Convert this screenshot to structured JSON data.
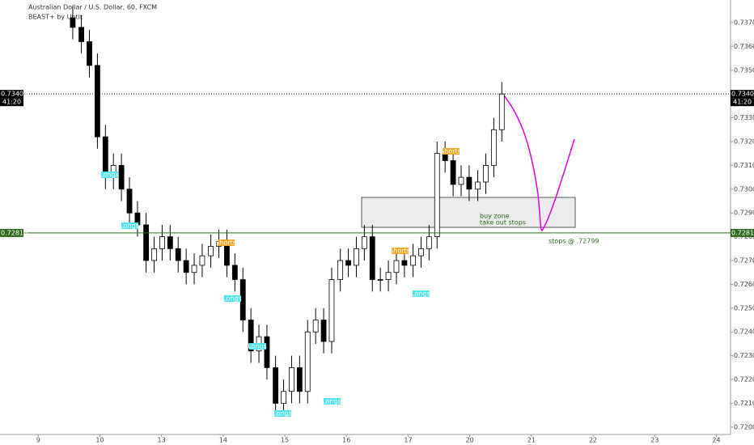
{
  "chart_data": {
    "type": "candlestick",
    "title": "Australian Dollar / U.S. Dollar, 60, FXCM",
    "subtitle": "BEAST+ by Untit",
    "up_color": "#ffffff",
    "down_color": "#000000",
    "xlim": [
      -0.62,
      11.23
    ],
    "ylim": [
      0.71969,
      0.73795
    ],
    "xticks": [
      {
        "value": 0,
        "label": "9"
      },
      {
        "value": 1,
        "label": "10"
      },
      {
        "value": 2,
        "label": "13"
      },
      {
        "value": 3,
        "label": "14"
      },
      {
        "value": 4,
        "label": "15"
      },
      {
        "value": 5,
        "label": "16"
      },
      {
        "value": 6,
        "label": "17"
      },
      {
        "value": 7,
        "label": "20"
      },
      {
        "value": 8,
        "label": "21"
      },
      {
        "value": 9,
        "label": "22"
      },
      {
        "value": 10,
        "label": "23"
      },
      {
        "value": 11,
        "label": "24"
      }
    ],
    "yticks": [
      {
        "value": 0.72,
        "label": "0.72000"
      },
      {
        "value": 0.721,
        "label": "0.72100"
      },
      {
        "value": 0.722,
        "label": "0.72200"
      },
      {
        "value": 0.723,
        "label": "0.72300"
      },
      {
        "value": 0.724,
        "label": "0.72400"
      },
      {
        "value": 0.725,
        "label": "0.72500"
      },
      {
        "value": 0.726,
        "label": "0.72600"
      },
      {
        "value": 0.727,
        "label": "0.72700"
      },
      {
        "value": 0.728,
        "label": "0.72800"
      },
      {
        "value": 0.729,
        "label": "0.72900"
      },
      {
        "value": 0.73,
        "label": "0.73000"
      },
      {
        "value": 0.731,
        "label": "0.73100"
      },
      {
        "value": 0.732,
        "label": "0.73200"
      },
      {
        "value": 0.733,
        "label": "0.73300"
      },
      {
        "value": 0.734,
        "label": "0.73400"
      },
      {
        "value": 0.735,
        "label": "0.73500"
      },
      {
        "value": 0.736,
        "label": "0.73600"
      },
      {
        "value": 0.737,
        "label": "0.73700"
      }
    ],
    "x": [
      0.56,
      0.7,
      0.83,
      0.96,
      1.09,
      1.22,
      1.35,
      1.48,
      1.61,
      1.75,
      1.88,
      2.01,
      2.14,
      2.27,
      2.4,
      2.53,
      2.66,
      2.8,
      2.93,
      3.06,
      3.19,
      3.32,
      3.45,
      3.58,
      3.71,
      3.85,
      3.98,
      4.11,
      4.24,
      4.37,
      4.5,
      4.63,
      4.76,
      4.9,
      5.03,
      5.16,
      5.29,
      5.42,
      5.55,
      5.68,
      5.81,
      5.94,
      6.08,
      6.21,
      6.34,
      6.47,
      6.6,
      6.73,
      6.86,
      6.99,
      7.13,
      7.26,
      7.39,
      7.52
    ],
    "open": [
      0.7372,
      0.7368,
      0.7362,
      0.7352,
      0.7322,
      0.7305,
      0.731,
      0.73,
      0.729,
      0.7285,
      0.727,
      0.7275,
      0.728,
      0.7275,
      0.727,
      0.7265,
      0.7268,
      0.7272,
      0.7276,
      0.7278,
      0.7268,
      0.7262,
      0.7245,
      0.7232,
      0.7238,
      0.7225,
      0.721,
      0.7215,
      0.7225,
      0.7215,
      0.724,
      0.7245,
      0.7236,
      0.7262,
      0.727,
      0.7268,
      0.7275,
      0.728,
      0.7262,
      0.7262,
      0.7265,
      0.727,
      0.7268,
      0.7272,
      0.7275,
      0.728,
      0.7315,
      0.7312,
      0.7302,
      0.7305,
      0.73,
      0.7303,
      0.731,
      0.7325
    ],
    "high": [
      0.7377,
      0.7373,
      0.7367,
      0.7357,
      0.7327,
      0.7315,
      0.7315,
      0.7305,
      0.7295,
      0.729,
      0.728,
      0.7285,
      0.7285,
      0.728,
      0.7275,
      0.7273,
      0.7277,
      0.7281,
      0.7283,
      0.7283,
      0.7273,
      0.7267,
      0.725,
      0.7243,
      0.7243,
      0.723,
      0.722,
      0.723,
      0.723,
      0.7245,
      0.725,
      0.725,
      0.7267,
      0.7275,
      0.7275,
      0.728,
      0.7285,
      0.7285,
      0.7267,
      0.727,
      0.7275,
      0.7275,
      0.7277,
      0.728,
      0.7285,
      0.732,
      0.732,
      0.7317,
      0.731,
      0.731,
      0.7308,
      0.7315,
      0.733,
      0.7345
    ],
    "low": [
      0.7363,
      0.7357,
      0.7347,
      0.7317,
      0.73,
      0.73,
      0.7295,
      0.7285,
      0.728,
      0.7265,
      0.7265,
      0.727,
      0.727,
      0.7265,
      0.726,
      0.726,
      0.7263,
      0.7267,
      0.7271,
      0.7263,
      0.7257,
      0.724,
      0.7227,
      0.7227,
      0.722,
      0.7205,
      0.7205,
      0.721,
      0.721,
      0.721,
      0.7235,
      0.7231,
      0.7231,
      0.7257,
      0.7263,
      0.7263,
      0.727,
      0.7257,
      0.7257,
      0.7257,
      0.726,
      0.7263,
      0.7263,
      0.7267,
      0.727,
      0.7275,
      0.7307,
      0.7297,
      0.7297,
      0.7295,
      0.7295,
      0.7298,
      0.7305,
      0.732
    ],
    "close": [
      0.7368,
      0.7362,
      0.7352,
      0.7322,
      0.7305,
      0.731,
      0.73,
      0.729,
      0.7285,
      0.727,
      0.7275,
      0.728,
      0.7275,
      0.727,
      0.7265,
      0.7268,
      0.7272,
      0.7276,
      0.7278,
      0.7268,
      0.7262,
      0.7245,
      0.7232,
      0.7238,
      0.7225,
      0.721,
      0.7215,
      0.7225,
      0.7215,
      0.724,
      0.7245,
      0.7236,
      0.7262,
      0.727,
      0.7268,
      0.7275,
      0.728,
      0.7262,
      0.7262,
      0.7265,
      0.727,
      0.7268,
      0.7272,
      0.7275,
      0.728,
      0.7315,
      0.7312,
      0.7302,
      0.7305,
      0.73,
      0.7303,
      0.731,
      0.7325,
      0.734
    ],
    "price_lines": [
      {
        "value": 0.734,
        "label": "0.73400",
        "sublabel": "41:20",
        "color": "#000000"
      },
      {
        "value": 0.72816,
        "label": "0.72816",
        "color": "#2e6b1f"
      }
    ],
    "annotations": [
      "buy zone",
      "take out stops",
      "stops @ .72799"
    ],
    "signals": [
      "Longs",
      "Longs",
      "Longs",
      "Longs",
      "Longs",
      "Longs",
      "Longs",
      "Shorts",
      "Shorts",
      "Shorts"
    ]
  }
}
